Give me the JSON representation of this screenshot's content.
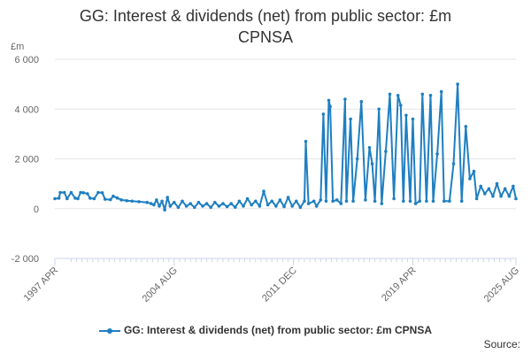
{
  "chart_data": {
    "type": "line",
    "title": "GG: Interest & dividends (net) from public sector: £m CPNSA",
    "title_lines": [
      "GG: Interest & dividends (net) from public sector: £m",
      "CPNSA"
    ],
    "ylabel": "£m",
    "xlabel": "",
    "ylim": [
      -2000,
      6000
    ],
    "y_ticks": [
      "-2 000",
      "0",
      "2 000",
      "4 000",
      "6 000"
    ],
    "y_tick_values": [
      -2000,
      0,
      2000,
      4000,
      6000
    ],
    "x_ticks": [
      "1997 APR",
      "2004 AUG",
      "2011 DEC",
      "2019 APR",
      "2025 AUG"
    ],
    "x_tick_values": [
      "1997-04",
      "2004-08",
      "2011-12",
      "2019-04",
      "2025-08"
    ],
    "x_range": [
      "1997-04",
      "2025-08"
    ],
    "grid": "horizontal",
    "legend_position": "bottom",
    "series": [
      {
        "name": "GG: Interest & dividends (net) from public sector: £m CPNSA",
        "color": "#1f7fc1",
        "points": [
          [
            "1997-04",
            400
          ],
          [
            "1997-07",
            420
          ],
          [
            "1997-08",
            650
          ],
          [
            "1997-11",
            650
          ],
          [
            "1998-01",
            400
          ],
          [
            "1998-04",
            650
          ],
          [
            "1998-07",
            420
          ],
          [
            "1998-09",
            400
          ],
          [
            "1998-11",
            650
          ],
          [
            "1999-01",
            640
          ],
          [
            "1999-04",
            600
          ],
          [
            "1999-06",
            420
          ],
          [
            "1999-09",
            400
          ],
          [
            "1999-12",
            650
          ],
          [
            "2000-03",
            640
          ],
          [
            "2000-05",
            380
          ],
          [
            "2000-09",
            360
          ],
          [
            "2000-11",
            500
          ],
          [
            "2001-02",
            430
          ],
          [
            "2001-05",
            350
          ],
          [
            "2001-09",
            320
          ],
          [
            "2002-01",
            300
          ],
          [
            "2002-06",
            280
          ],
          [
            "2002-12",
            250
          ],
          [
            "2003-03",
            200
          ],
          [
            "2003-05",
            150
          ],
          [
            "2003-07",
            350
          ],
          [
            "2003-09",
            100
          ],
          [
            "2003-11",
            300
          ],
          [
            "2004-01",
            -50
          ],
          [
            "2004-03",
            450
          ],
          [
            "2004-05",
            100
          ],
          [
            "2004-08",
            250
          ],
          [
            "2004-11",
            50
          ],
          [
            "2005-02",
            300
          ],
          [
            "2005-05",
            100
          ],
          [
            "2005-08",
            200
          ],
          [
            "2005-11",
            50
          ],
          [
            "2006-02",
            250
          ],
          [
            "2006-05",
            100
          ],
          [
            "2006-08",
            200
          ],
          [
            "2006-11",
            50
          ],
          [
            "2007-02",
            250
          ],
          [
            "2007-05",
            100
          ],
          [
            "2007-08",
            200
          ],
          [
            "2007-11",
            80
          ],
          [
            "2008-02",
            200
          ],
          [
            "2008-05",
            60
          ],
          [
            "2008-08",
            300
          ],
          [
            "2008-11",
            100
          ],
          [
            "2009-02",
            400
          ],
          [
            "2009-05",
            150
          ],
          [
            "2009-08",
            300
          ],
          [
            "2009-11",
            100
          ],
          [
            "2010-02",
            700
          ],
          [
            "2010-05",
            150
          ],
          [
            "2010-08",
            300
          ],
          [
            "2010-11",
            100
          ],
          [
            "2011-02",
            350
          ],
          [
            "2011-05",
            80
          ],
          [
            "2011-08",
            450
          ],
          [
            "2011-11",
            100
          ],
          [
            "2012-02",
            300
          ],
          [
            "2012-05",
            50
          ],
          [
            "2012-08",
            300
          ],
          [
            "2012-09",
            2700
          ],
          [
            "2012-11",
            200
          ],
          [
            "2013-03",
            300
          ],
          [
            "2013-05",
            100
          ],
          [
            "2013-08",
            350
          ],
          [
            "2013-10",
            3800
          ],
          [
            "2013-12",
            300
          ],
          [
            "2014-02",
            4350
          ],
          [
            "2014-03",
            4100
          ],
          [
            "2014-05",
            300
          ],
          [
            "2014-08",
            350
          ],
          [
            "2014-11",
            200
          ],
          [
            "2015-02",
            4400
          ],
          [
            "2015-03",
            300
          ],
          [
            "2015-06",
            3600
          ],
          [
            "2015-08",
            300
          ],
          [
            "2015-11",
            2000
          ],
          [
            "2016-02",
            4300
          ],
          [
            "2016-05",
            350
          ],
          [
            "2016-08",
            2450
          ],
          [
            "2016-10",
            1800
          ],
          [
            "2016-12",
            300
          ],
          [
            "2017-03",
            4000
          ],
          [
            "2017-05",
            200
          ],
          [
            "2017-08",
            2300
          ],
          [
            "2017-11",
            4600
          ],
          [
            "2018-02",
            400
          ],
          [
            "2018-05",
            4550
          ],
          [
            "2018-07",
            4150
          ],
          [
            "2018-09",
            300
          ],
          [
            "2018-11",
            3750
          ],
          [
            "2019-02",
            300
          ],
          [
            "2019-04",
            3600
          ],
          [
            "2019-06",
            200
          ],
          [
            "2019-09",
            300
          ],
          [
            "2019-11",
            4600
          ],
          [
            "2020-02",
            300
          ],
          [
            "2020-05",
            4550
          ],
          [
            "2020-07",
            300
          ],
          [
            "2020-10",
            2200
          ],
          [
            "2021-01",
            4700
          ],
          [
            "2021-03",
            300
          ],
          [
            "2021-07",
            300
          ],
          [
            "2021-10",
            1800
          ],
          [
            "2022-01",
            5000
          ],
          [
            "2022-04",
            300
          ],
          [
            "2022-07",
            3300
          ],
          [
            "2022-10",
            1200
          ],
          [
            "2023-01",
            1500
          ],
          [
            "2023-03",
            400
          ],
          [
            "2023-06",
            900
          ],
          [
            "2023-09",
            600
          ],
          [
            "2023-12",
            800
          ],
          [
            "2024-03",
            500
          ],
          [
            "2024-06",
            1000
          ],
          [
            "2024-09",
            500
          ],
          [
            "2024-12",
            800
          ],
          [
            "2025-03",
            500
          ],
          [
            "2025-06",
            900
          ],
          [
            "2025-08",
            400
          ]
        ]
      }
    ]
  },
  "source_label": "Source:"
}
